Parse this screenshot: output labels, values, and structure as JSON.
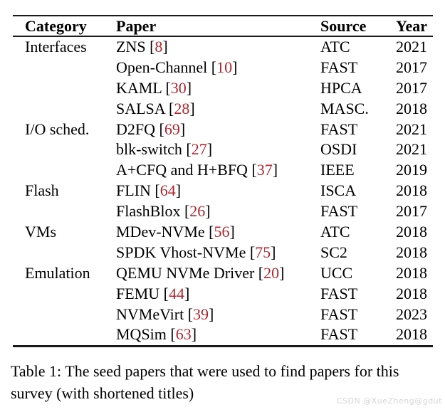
{
  "table": {
    "headers": [
      "Category",
      "Paper",
      "Source",
      "Year"
    ],
    "rows": [
      {
        "category": "Interfaces",
        "paper": "ZNS",
        "ref": "8",
        "source": "ATC",
        "year": "2021"
      },
      {
        "category": "",
        "paper": "Open-Channel",
        "ref": "10",
        "source": "FAST",
        "year": "2017"
      },
      {
        "category": "",
        "paper": "KAML",
        "ref": "30",
        "source": "HPCA",
        "year": "2017"
      },
      {
        "category": "",
        "paper": "SALSA",
        "ref": "28",
        "source": "MASC.",
        "year": "2018"
      },
      {
        "category": "I/O sched.",
        "paper": "D2FQ",
        "ref": "69",
        "source": "FAST",
        "year": "2021"
      },
      {
        "category": "",
        "paper": "blk-switch",
        "ref": "27",
        "source": "OSDI",
        "year": "2021"
      },
      {
        "category": "",
        "paper": "A+CFQ and H+BFQ",
        "ref": "37",
        "source": "IEEE",
        "year": "2019"
      },
      {
        "category": "Flash",
        "paper": "FLIN",
        "ref": "64",
        "source": "ISCA",
        "year": "2018"
      },
      {
        "category": "",
        "paper": "FlashBlox",
        "ref": "26",
        "source": "FAST",
        "year": "2017"
      },
      {
        "category": "VMs",
        "paper": "MDev-NVMe",
        "ref": "56",
        "source": "ATC",
        "year": "2018"
      },
      {
        "category": "",
        "paper": "SPDK Vhost-NVMe",
        "ref": "75",
        "source": "SC2",
        "year": "2018"
      },
      {
        "category": "Emulation",
        "paper": "QEMU NVMe Driver",
        "ref": "20",
        "source": "UCC",
        "year": "2018"
      },
      {
        "category": "",
        "paper": "FEMU",
        "ref": "44",
        "source": "FAST",
        "year": "2018"
      },
      {
        "category": "",
        "paper": "NVMeVirt",
        "ref": "39",
        "source": "FAST",
        "year": "2023"
      },
      {
        "category": "",
        "paper": "MQSim",
        "ref": "63",
        "source": "FAST",
        "year": "2018"
      }
    ],
    "bracket_open": "[",
    "bracket_close": "]"
  },
  "caption": "Table 1: The seed papers that were used to find papers for this survey (with shortened titles)",
  "watermark": "CSDN @XueZheng@gdut",
  "colors": {
    "citation_red": "#b2242c",
    "text": "#000000",
    "rule": "#1a1a1a",
    "watermark_gray": "#d6d6d6"
  }
}
